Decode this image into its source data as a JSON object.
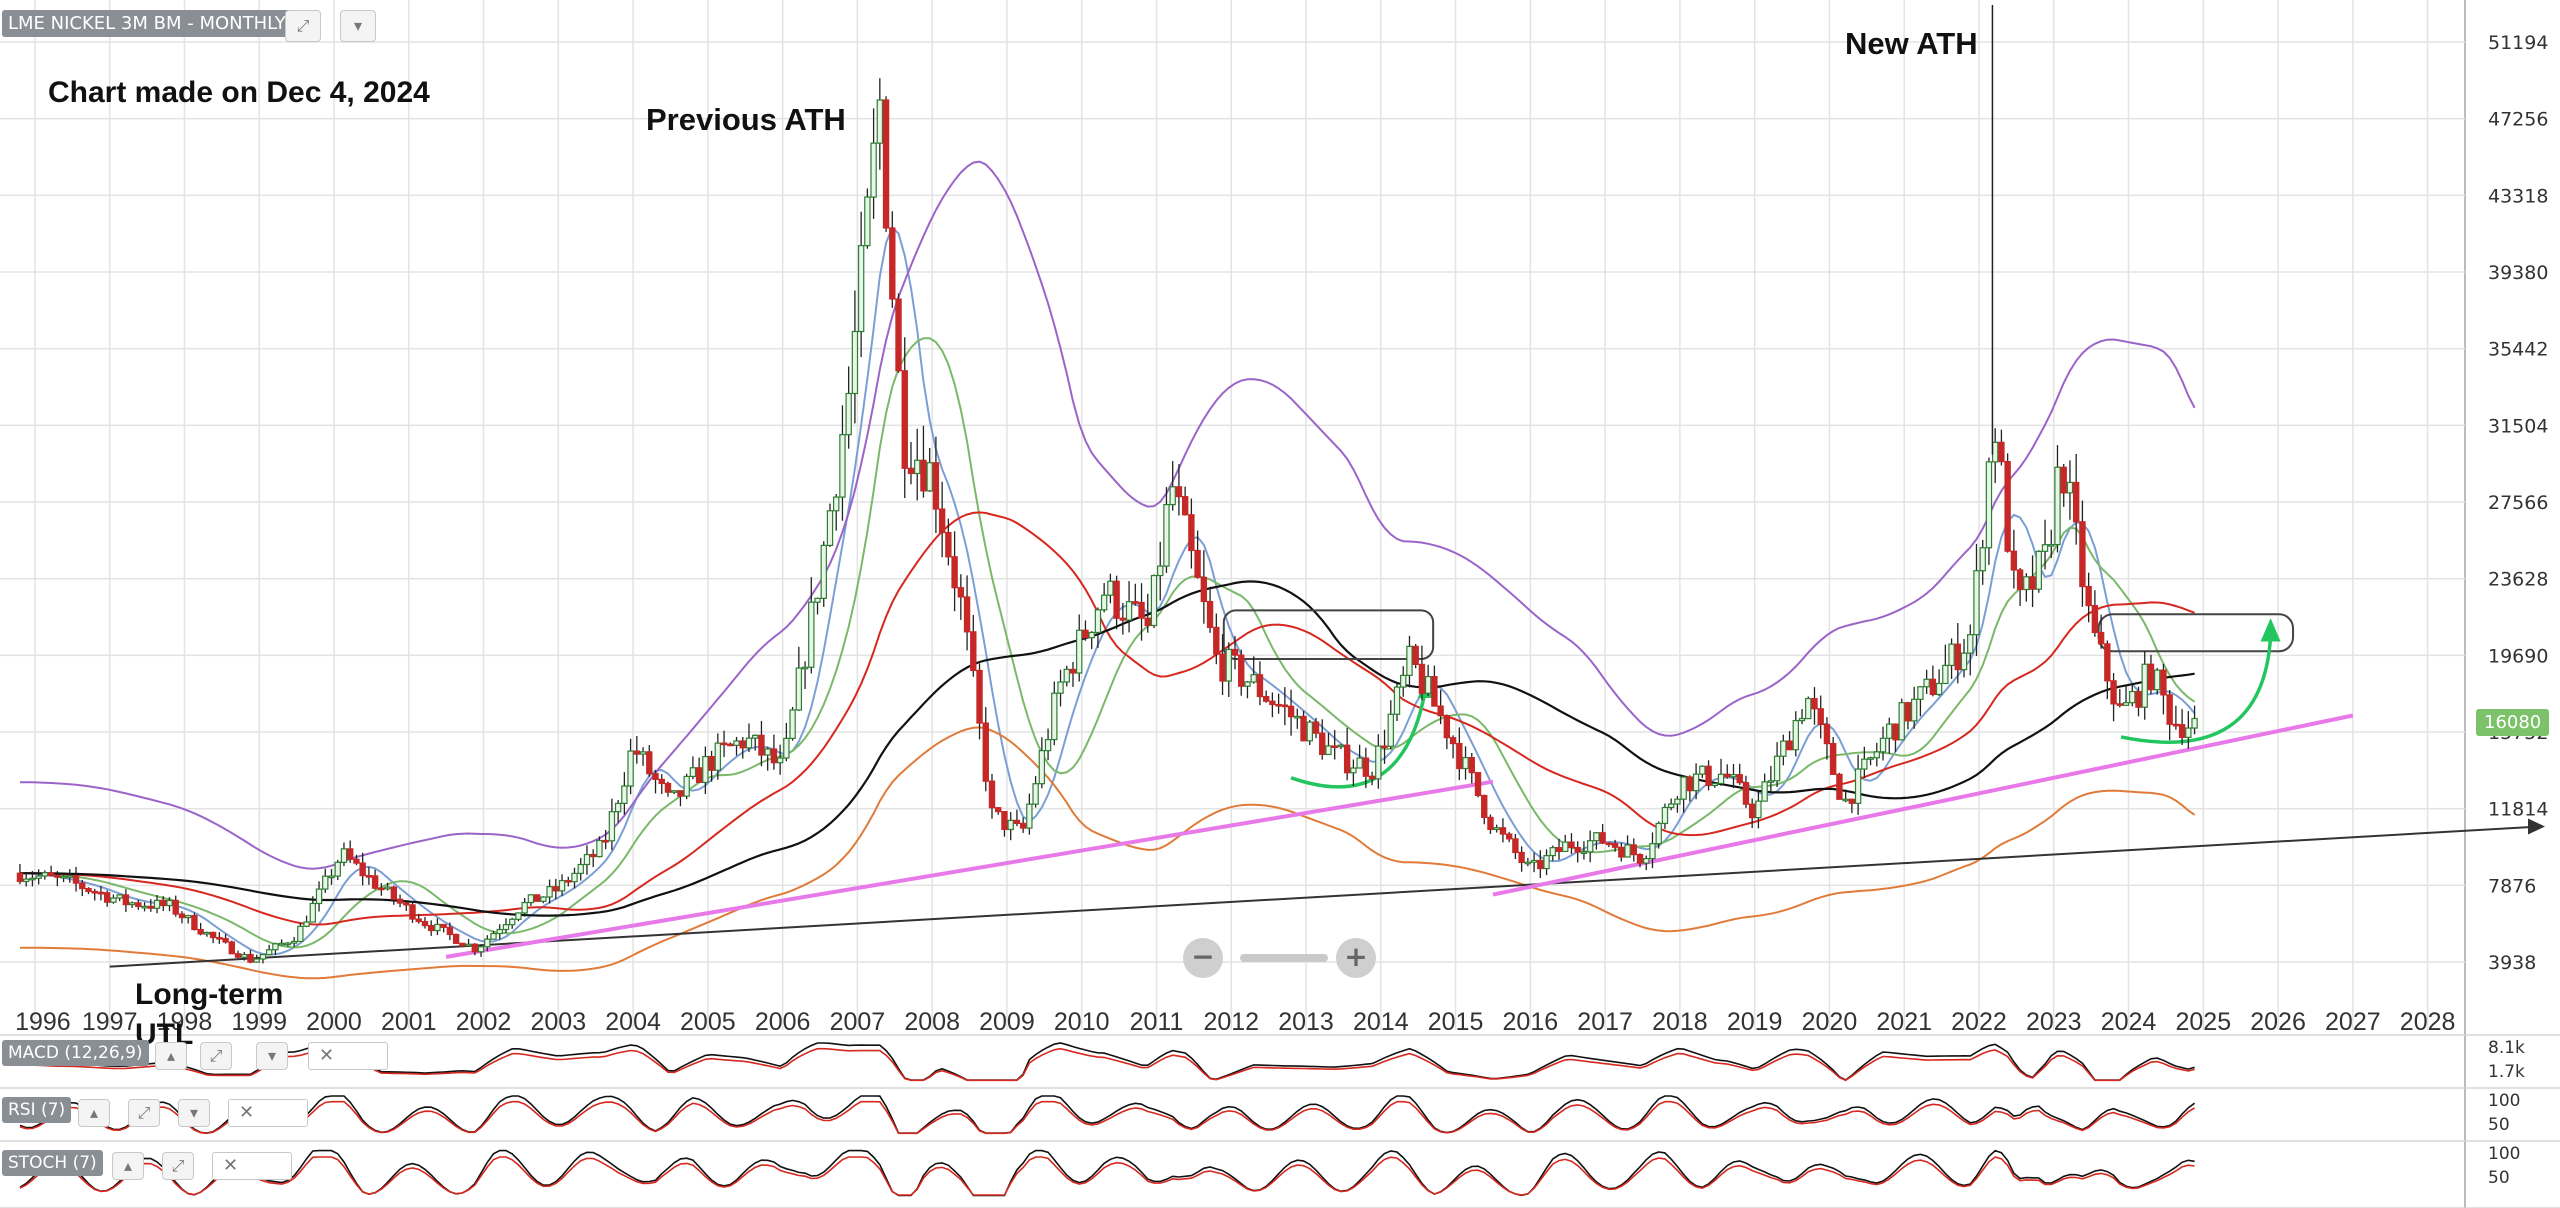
{
  "header": {
    "title": "LME NICKEL 3M BM - MONTHLY"
  },
  "annotations": {
    "chart_made": "Chart made on Dec 4, 2024",
    "previous_ath": "Previous ATH",
    "new_ath": "New ATH",
    "long_term": "Long-term",
    "utl": "UTL"
  },
  "price_label": "16080",
  "indicators": {
    "macd": {
      "label": "MACD (12,26,9)",
      "ticks": [
        "8.1k",
        "1.7k"
      ]
    },
    "rsi": {
      "label": "RSI (7)",
      "ticks": [
        "100",
        "50"
      ]
    },
    "stoch": {
      "label": "STOCH (7)",
      "ticks": [
        "100",
        "50"
      ]
    }
  },
  "colors": {
    "price_up": "#2e7d32",
    "price_down": "#c62828",
    "sma_fast": "#7b9fd4",
    "sma_mid": "#7ab86a",
    "sma_long_red": "#d6281f",
    "sma_black": "#111111",
    "bb_upper": "#9b64c8",
    "bb_lower": "#e07b39",
    "trendline_magenta": "#e879e8",
    "arrow_green": "#22c55e",
    "price_badge": "#7cc26a"
  },
  "icons": {
    "expand": "expand-icon",
    "collapse": "collapse-icon",
    "up": "arrow-up-icon",
    "down": "arrow-down-icon",
    "close": "close-icon",
    "zoom_out": "zoom-out-icon",
    "zoom_in": "zoom-in-icon"
  },
  "chart_data": {
    "type": "line",
    "title": "LME NICKEL 3M BM - MONTHLY",
    "xlabel": "",
    "ylabel": "",
    "x": [
      "1996",
      "1997",
      "1998",
      "1999",
      "2000",
      "2001",
      "2002",
      "2003",
      "2004",
      "2005",
      "2006",
      "2007",
      "2008",
      "2009",
      "2010",
      "2011",
      "2012",
      "2013",
      "2014",
      "2015",
      "2016",
      "2017",
      "2018",
      "2019",
      "2020",
      "2021",
      "2022",
      "2023",
      "2024",
      "2025",
      "2026",
      "2027",
      "2028"
    ],
    "ylim": [
      2900,
      53000
    ],
    "yscale": "log",
    "yticks": [
      3938,
      7876,
      11814,
      15752,
      19690,
      23628,
      27566,
      31504,
      35442,
      39380,
      43318,
      47256,
      51194
    ],
    "grid": true,
    "series": [
      {
        "type": "price",
        "points": [
          {
            "t": 1995.8,
            "v": 8500
          },
          {
            "t": 1996.5,
            "v": 8000
          },
          {
            "t": 1997.2,
            "v": 7000
          },
          {
            "t": 1997.8,
            "v": 6800
          },
          {
            "t": 1998.4,
            "v": 5100
          },
          {
            "t": 1998.9,
            "v": 4000
          },
          {
            "t": 1999.5,
            "v": 5300
          },
          {
            "t": 2000.1,
            "v": 9500
          },
          {
            "t": 2000.6,
            "v": 7800
          },
          {
            "t": 2001.2,
            "v": 6000
          },
          {
            "t": 2001.9,
            "v": 4600
          },
          {
            "t": 2002.5,
            "v": 6800
          },
          {
            "t": 2003.0,
            "v": 7700
          },
          {
            "t": 2003.6,
            "v": 9900
          },
          {
            "t": 2004.0,
            "v": 15000
          },
          {
            "t": 2004.5,
            "v": 12000
          },
          {
            "t": 2005.0,
            "v": 14200
          },
          {
            "t": 2005.5,
            "v": 15400
          },
          {
            "t": 2006.0,
            "v": 13800
          },
          {
            "t": 2006.5,
            "v": 24000
          },
          {
            "t": 2006.9,
            "v": 33500
          },
          {
            "t": 2007.3,
            "v": 48000
          },
          {
            "t": 2007.6,
            "v": 31000
          },
          {
            "t": 2008.0,
            "v": 29000
          },
          {
            "t": 2008.4,
            "v": 22000
          },
          {
            "t": 2008.8,
            "v": 11500
          },
          {
            "t": 2009.2,
            "v": 10500
          },
          {
            "t": 2009.7,
            "v": 18000
          },
          {
            "t": 2010.3,
            "v": 23000
          },
          {
            "t": 2010.9,
            "v": 21000
          },
          {
            "t": 2011.2,
            "v": 28500
          },
          {
            "t": 2011.8,
            "v": 19500
          },
          {
            "t": 2012.2,
            "v": 18500
          },
          {
            "t": 2012.8,
            "v": 16600
          },
          {
            "t": 2013.4,
            "v": 14500
          },
          {
            "t": 2013.9,
            "v": 13900
          },
          {
            "t": 2014.4,
            "v": 19400
          },
          {
            "t": 2014.9,
            "v": 15800
          },
          {
            "t": 2015.5,
            "v": 10900
          },
          {
            "t": 2016.0,
            "v": 8600
          },
          {
            "t": 2016.5,
            "v": 10000
          },
          {
            "t": 2017.0,
            "v": 10200
          },
          {
            "t": 2017.5,
            "v": 9300
          },
          {
            "t": 2018.0,
            "v": 13200
          },
          {
            "t": 2018.6,
            "v": 13600
          },
          {
            "t": 2019.0,
            "v": 11600
          },
          {
            "t": 2019.7,
            "v": 17600
          },
          {
            "t": 2020.2,
            "v": 12100
          },
          {
            "t": 2020.8,
            "v": 15800
          },
          {
            "t": 2021.3,
            "v": 17800
          },
          {
            "t": 2021.9,
            "v": 20800
          },
          {
            "t": 2022.2,
            "v": 32000
          },
          {
            "t": 2022.5,
            "v": 22000
          },
          {
            "t": 2022.9,
            "v": 24600
          },
          {
            "t": 2023.1,
            "v": 30000
          },
          {
            "t": 2023.5,
            "v": 21000
          },
          {
            "t": 2023.9,
            "v": 16600
          },
          {
            "t": 2024.3,
            "v": 18800
          },
          {
            "t": 2024.6,
            "v": 16300
          },
          {
            "t": 2024.92,
            "v": 16080
          }
        ]
      }
    ]
  }
}
